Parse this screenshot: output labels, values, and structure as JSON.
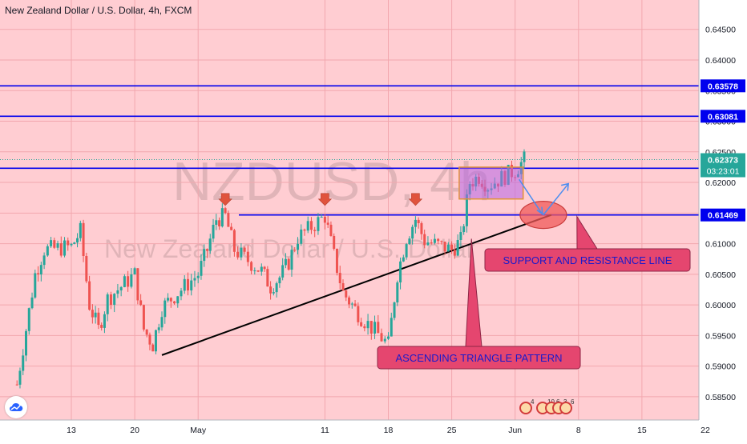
{
  "header": {
    "symbol_title": "New Zealand Dollar / U.S. Dollar, 4h, FXCM"
  },
  "watermark": {
    "ticker": "NZDUSD, 4h",
    "name": "New Zealand Dollar / U.S. Dollar"
  },
  "colors": {
    "background": "#ffcdd2",
    "level_line": "#0000ee",
    "trendline": "#000000",
    "candle_up": "#26a69a",
    "candle_down": "#ef5350",
    "callout_fill": "#e5466f",
    "callout_text": "#1a1acb",
    "price_badge": "#0000ee",
    "current_price_badge": "#26a69a"
  },
  "chart_data": {
    "type": "candlestick",
    "x_tick_labels": [
      "13",
      "20",
      "May",
      "11",
      "18",
      "25",
      "Jun",
      "8",
      "15",
      "22"
    ],
    "y_tick_labels": [
      "0.64500",
      "0.64000",
      "0.63500",
      "0.63000",
      "0.62500",
      "0.62000",
      "0.61500",
      "0.61000",
      "0.60500",
      "0.60000",
      "0.59500",
      "0.59000",
      "0.58500"
    ],
    "ylim": [
      0.5812,
      0.6498
    ],
    "horizontal_levels": [
      {
        "value": 0.63578,
        "label": "0.63578"
      },
      {
        "value": 0.63081,
        "label": "0.63081"
      },
      {
        "value": 0.62232,
        "label": "0.62232"
      },
      {
        "value": 0.61469,
        "label": "0.61469"
      }
    ],
    "current_price": {
      "value": 0.62373,
      "label": "0.62373",
      "countdown": "03:23:01"
    },
    "price_path": [
      {
        "x": "Apr 7",
        "close": 0.587
      },
      {
        "x": "Apr 8",
        "close": 0.596
      },
      {
        "x": "Apr 9",
        "close": 0.605
      },
      {
        "x": "Apr 10",
        "close": 0.609
      },
      {
        "x": "Apr 13",
        "close": 0.6095
      },
      {
        "x": "Apr 14",
        "close": 0.612
      },
      {
        "x": "Apr 15",
        "close": 0.6
      },
      {
        "x": "Apr 16",
        "close": 0.596
      },
      {
        "x": "Apr 17",
        "close": 0.601
      },
      {
        "x": "Apr 20",
        "close": 0.605
      },
      {
        "x": "Apr 21",
        "close": 0.596
      },
      {
        "x": "Apr 22",
        "close": 0.5935
      },
      {
        "x": "Apr 23",
        "close": 0.5995
      },
      {
        "x": "Apr 24",
        "close": 0.601
      },
      {
        "x": "Apr 27",
        "close": 0.605
      },
      {
        "x": "Apr 28",
        "close": 0.609
      },
      {
        "x": "Apr 29",
        "close": 0.614
      },
      {
        "x": "Apr 30",
        "close": 0.6145
      },
      {
        "x": "May 1",
        "close": 0.609
      },
      {
        "x": "May 4",
        "close": 0.6055
      },
      {
        "x": "May 5",
        "close": 0.603
      },
      {
        "x": "May 6",
        "close": 0.6045
      },
      {
        "x": "May 7",
        "close": 0.607
      },
      {
        "x": "May 8",
        "close": 0.611
      },
      {
        "x": "May 11",
        "close": 0.6145
      },
      {
        "x": "May 12",
        "close": 0.608
      },
      {
        "x": "May 13",
        "close": 0.602
      },
      {
        "x": "May 14",
        "close": 0.6
      },
      {
        "x": "May 15",
        "close": 0.598
      },
      {
        "x": "May 18",
        "close": 0.5935
      },
      {
        "x": "May 19",
        "close": 0.605
      },
      {
        "x": "May 20",
        "close": 0.611
      },
      {
        "x": "May 21",
        "close": 0.614
      },
      {
        "x": "May 22",
        "close": 0.6105
      },
      {
        "x": "May 25",
        "close": 0.609
      },
      {
        "x": "May 26",
        "close": 0.6105
      },
      {
        "x": "May 27",
        "close": 0.62
      },
      {
        "x": "May 28",
        "close": 0.621
      },
      {
        "x": "May 29",
        "close": 0.6195
      },
      {
        "x": "Jun 1",
        "close": 0.622
      },
      {
        "x": "Jun 2",
        "close": 0.6237
      }
    ],
    "trendline": {
      "from": {
        "x": "Apr 23",
        "y": 0.5918
      },
      "to": {
        "x": "Jun 5",
        "y": 0.6147
      }
    },
    "resistance_markers": [
      "Apr 30",
      "May 11",
      "May 21"
    ],
    "consolidation_box": {
      "x_from": "May 26",
      "x_to": "Jun 1",
      "y_from": 0.6173,
      "y_to": 0.6225
    },
    "annotations": [
      {
        "text": "SUPPORT AND RESISTANCE LINE"
      },
      {
        "text": "ASCENDING TRIANGLE PATTERN"
      }
    ],
    "indicator_badges": [
      "4",
      "10",
      "6",
      "3",
      "6"
    ]
  }
}
